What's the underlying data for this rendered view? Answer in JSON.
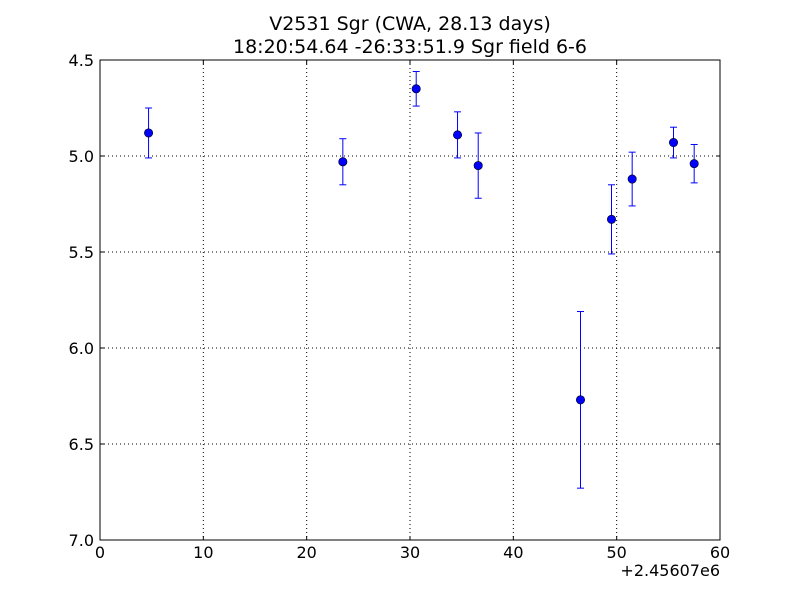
{
  "chart_data": {
    "type": "scatter",
    "title_line1": "V2531 Sgr (CWA, 28.13 days)",
    "title_line2": "18:20:54.64 -26:33:51.9 Sgr field 6-6",
    "xlabel": "",
    "ylabel": "",
    "x_offset_label": "+2.45607e6",
    "xlim": [
      0,
      60
    ],
    "ylim": [
      7.0,
      4.5
    ],
    "y_inverted": true,
    "grid": true,
    "x_ticks": [
      0,
      10,
      20,
      30,
      40,
      50,
      60
    ],
    "x_tick_labels": [
      "0",
      "10",
      "20",
      "30",
      "40",
      "50",
      "60"
    ],
    "y_ticks": [
      4.5,
      5.0,
      5.5,
      6.0,
      6.5,
      7.0
    ],
    "y_tick_labels": [
      "4.5",
      "5.0",
      "5.5",
      "6.0",
      "6.5",
      "7.0"
    ],
    "marker_color": "#0000ff",
    "errorbar_color": "#0000ff",
    "points": [
      {
        "x": 4.7,
        "y": 4.88,
        "err": 0.13
      },
      {
        "x": 23.5,
        "y": 5.03,
        "err": 0.12
      },
      {
        "x": 30.6,
        "y": 4.65,
        "err": 0.09
      },
      {
        "x": 34.6,
        "y": 4.89,
        "err": 0.12
      },
      {
        "x": 36.6,
        "y": 5.05,
        "err": 0.17
      },
      {
        "x": 46.5,
        "y": 6.27,
        "err": 0.46
      },
      {
        "x": 49.5,
        "y": 5.33,
        "err": 0.18
      },
      {
        "x": 51.5,
        "y": 5.12,
        "err": 0.14
      },
      {
        "x": 55.5,
        "y": 4.93,
        "err": 0.08
      },
      {
        "x": 57.5,
        "y": 5.04,
        "err": 0.1
      }
    ]
  }
}
